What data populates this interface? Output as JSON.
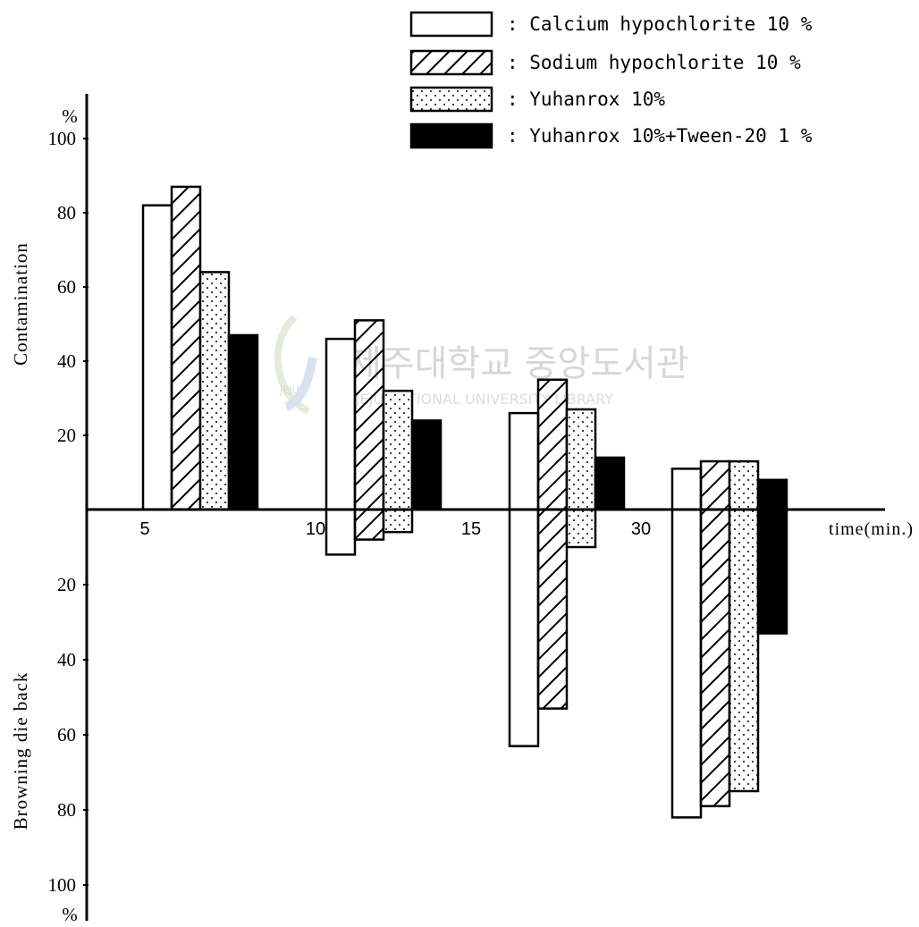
{
  "chart_data": {
    "type": "bar",
    "categories": [
      "5",
      "10",
      "15",
      "30"
    ],
    "x_axis_label": "time(min.)",
    "upper_axis": {
      "label": "Contamination",
      "unit": "%",
      "range": [
        0,
        100
      ],
      "ticks": [
        "20",
        "40",
        "60",
        "80",
        "100"
      ]
    },
    "lower_axis": {
      "label": "Browning die back",
      "unit": "%",
      "range": [
        0,
        100
      ],
      "ticks": [
        "20",
        "40",
        "60",
        "80",
        "100"
      ]
    },
    "series": [
      {
        "name": ": Calcium hypochlorite 10 %",
        "pattern": "white",
        "contamination": [
          82,
          46,
          26,
          11
        ],
        "browning": [
          0,
          12,
          63,
          82
        ]
      },
      {
        "name": ": Sodium hypochlorite 10 %",
        "pattern": "hatch",
        "contamination": [
          87,
          51,
          35,
          13
        ],
        "browning": [
          0,
          8,
          53,
          79
        ]
      },
      {
        "name": ": Yuhanrox 10%",
        "pattern": "dots",
        "contamination": [
          64,
          32,
          27,
          13
        ],
        "browning": [
          0,
          6,
          10,
          75
        ]
      },
      {
        "name": ": Yuhanrox 10%+Tween-20 1 %",
        "pattern": "black",
        "contamination": [
          47,
          24,
          14,
          8
        ],
        "browning": [
          0,
          0,
          0,
          33
        ]
      }
    ],
    "legend_position": "top-right",
    "grid": false
  },
  "watermark": {
    "text": "제주대학교 중앙도서관",
    "subtext": "JEJU NATIONAL UNIVERSITY LIBRARY",
    "logo_text": "JEJU"
  }
}
